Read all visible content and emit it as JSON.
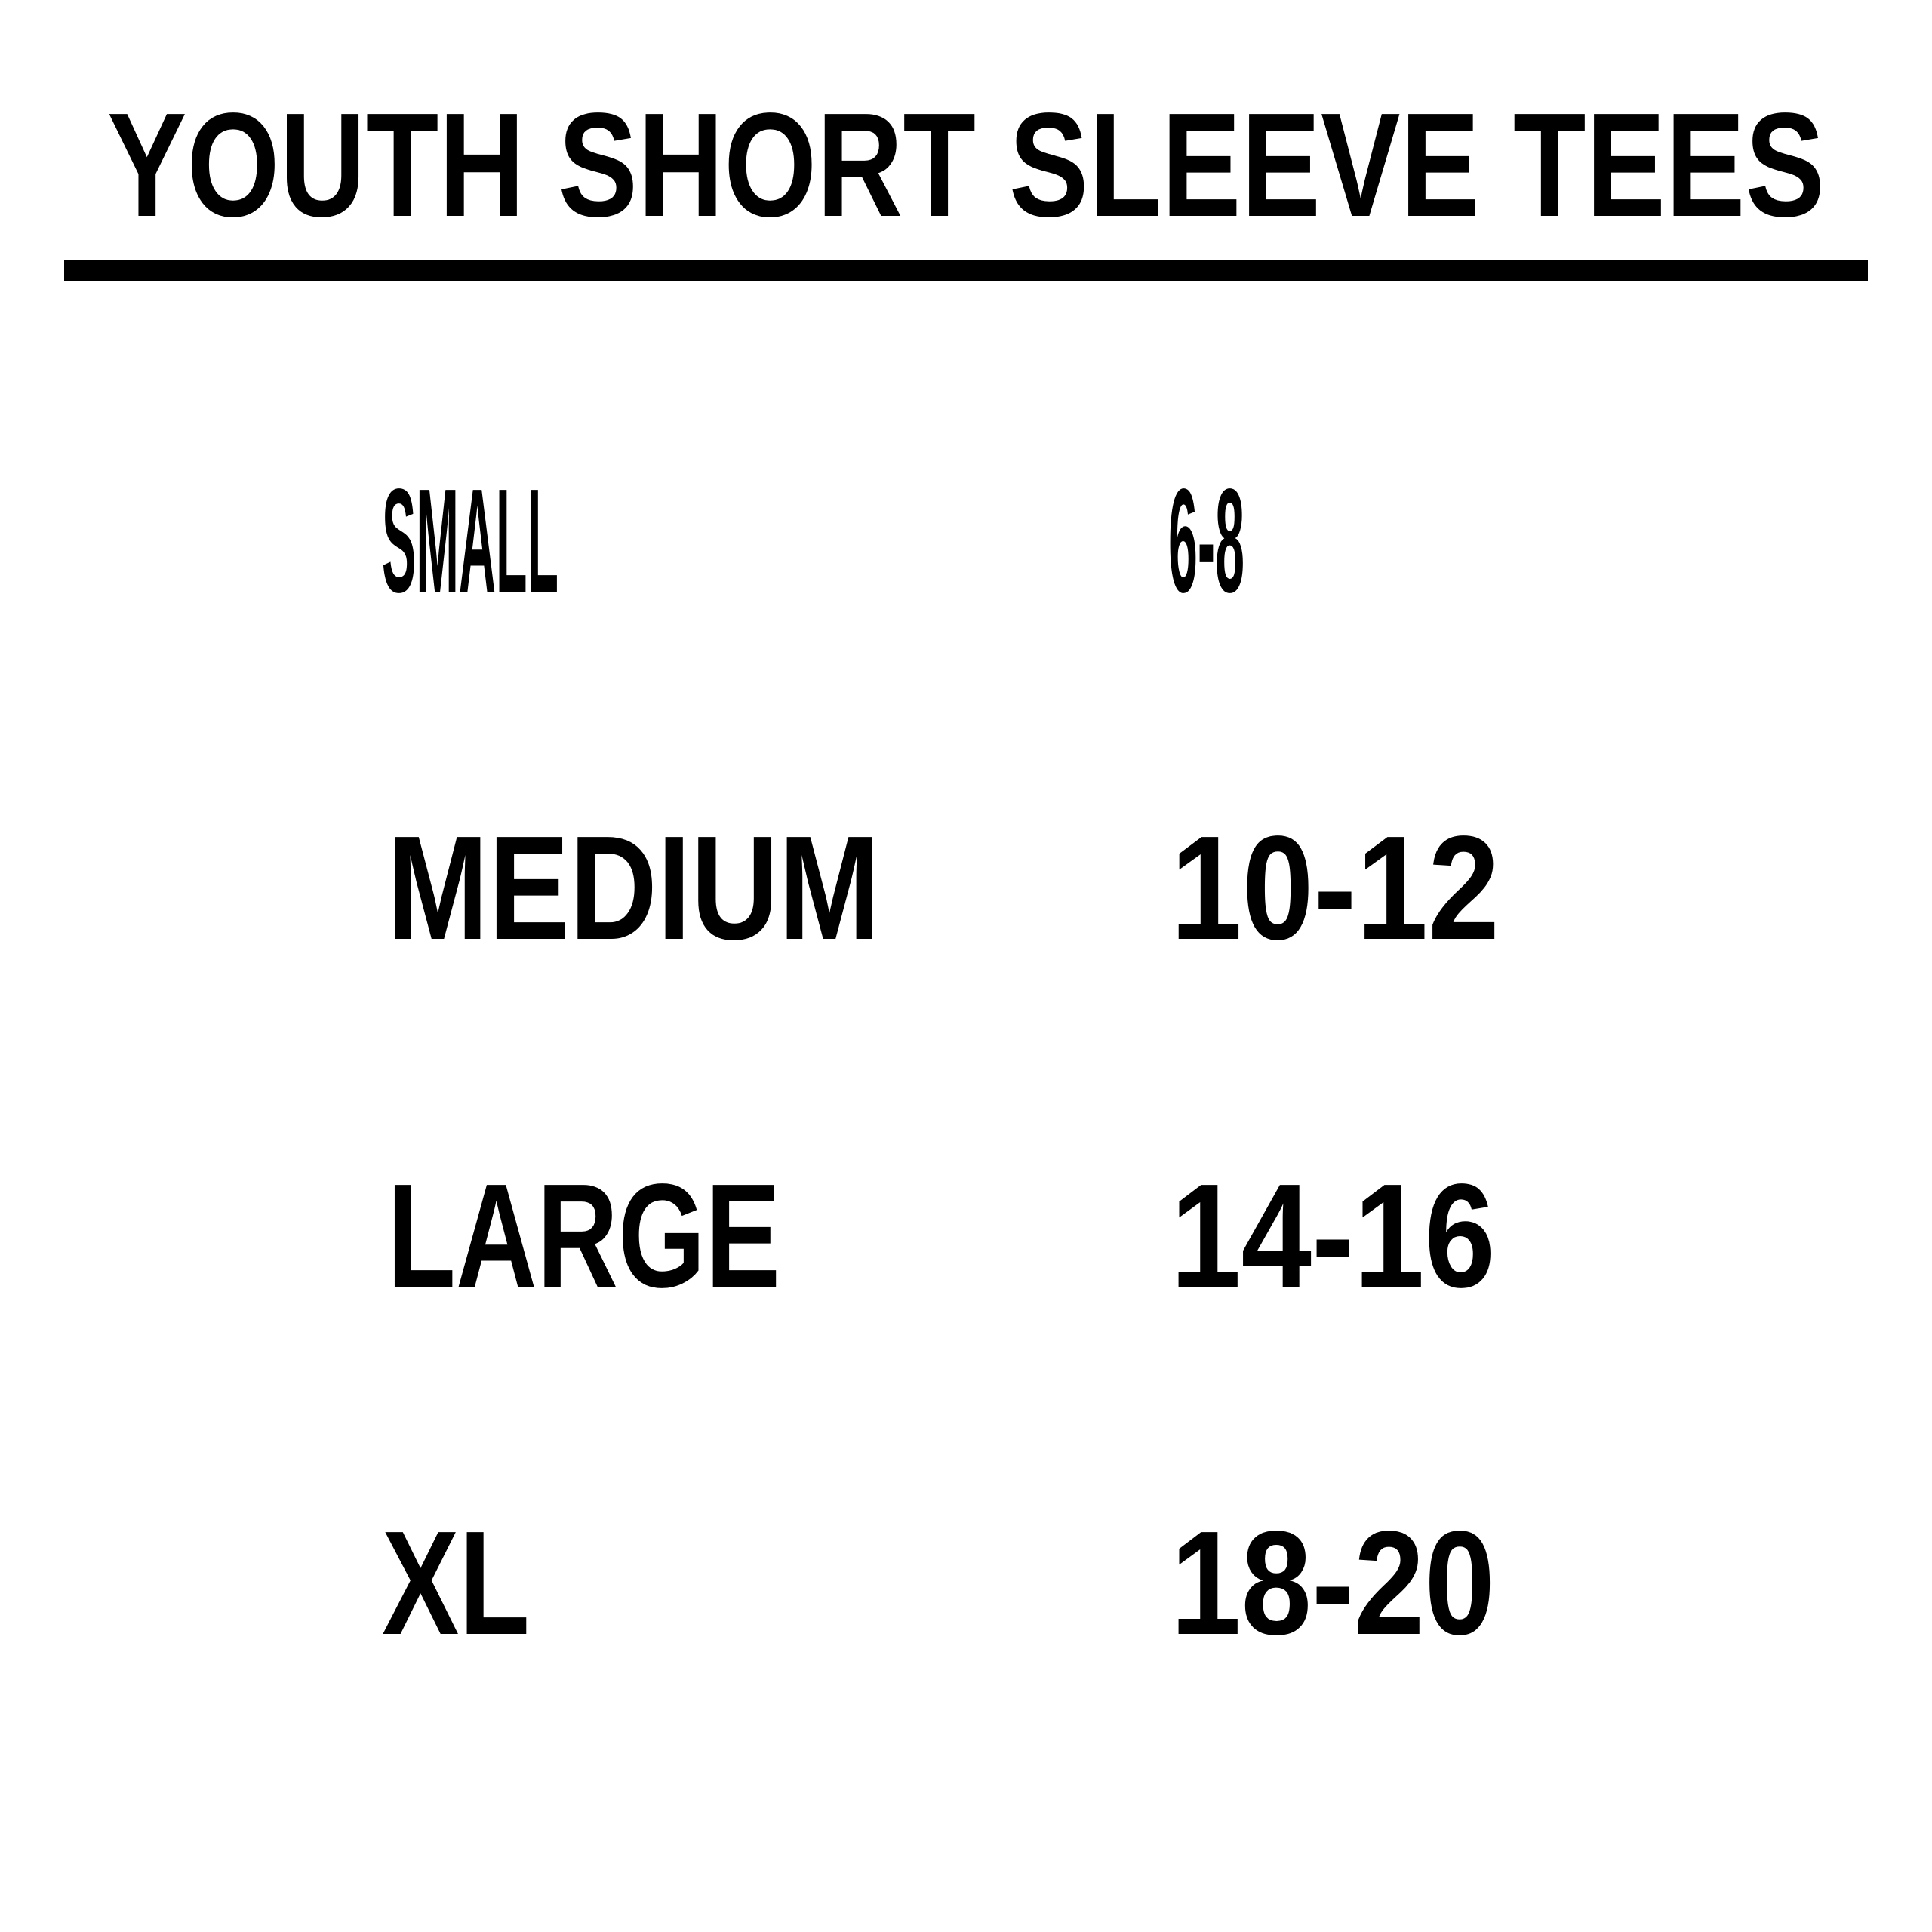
{
  "title": "YOUTH SHORT SLEEVE TEES",
  "colors": {
    "text": "#000000",
    "background": "#ffffff",
    "rule": "#000000"
  },
  "sizes": [
    {
      "label": "SMALL",
      "range": "6-8"
    },
    {
      "label": "MEDIUM",
      "range": "10-12"
    },
    {
      "label": "LARGE",
      "range": "14-16"
    },
    {
      "label": "XL",
      "range": "18-20"
    }
  ]
}
